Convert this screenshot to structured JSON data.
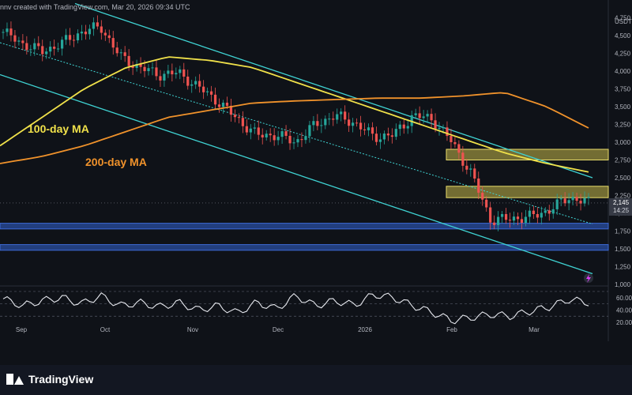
{
  "header": {
    "created_text": "nnv created with TradingView.com, Mar 20, 2026 09:34 UTC"
  },
  "footer": {
    "brand": "TradingView"
  },
  "colors": {
    "background": "#0f1218",
    "up": "#26a69a",
    "down": "#ef5350",
    "ma100": "#f0e14a",
    "ma200": "#f0922b",
    "channel": "#3fd3d3",
    "zone_yellow": "#c7b84a",
    "zone_blue": "#2a4ea0",
    "rsi": "#e6e8ee"
  },
  "annotations": {
    "ma100_label": "100-day MA",
    "ma200_label": "200-day MA"
  },
  "chart_data": {
    "type": "candlestick",
    "symbol_label": "USDT",
    "price_axis_ticks": [
      "4,750",
      "4,500",
      "4,250",
      "4,000",
      "3,750",
      "3,500",
      "3,250",
      "3,000",
      "2,750",
      "2,500",
      "2,250",
      "2,000",
      "1,750",
      "1,500",
      "1,250",
      "1,000"
    ],
    "price_axis_values": [
      4750,
      4500,
      4250,
      4000,
      3750,
      3500,
      3250,
      3000,
      2750,
      2500,
      2250,
      2000,
      1750,
      1500,
      1250,
      1000
    ],
    "current_price_label": "2,145",
    "countdown_label": "14:25",
    "x_tick_labels": [
      "Sep",
      "Oct",
      "Nov",
      "Dec",
      "2026",
      "Feb",
      "Mar"
    ],
    "ylim": [
      1000,
      4800
    ],
    "ohlc_anchors": [
      [
        4580,
        4520
      ],
      [
        4350,
        4420
      ],
      [
        4300,
        4250
      ],
      [
        4480,
        4300
      ],
      [
        4550,
        4550
      ],
      [
        4750,
        4500
      ],
      [
        4300,
        4100
      ],
      [
        4150,
        3950
      ],
      [
        4000,
        3900
      ],
      [
        4050,
        3900
      ],
      [
        3750,
        3800
      ],
      [
        3600,
        3550
      ],
      [
        3350,
        3300
      ],
      [
        3150,
        3050
      ],
      [
        3300,
        2900
      ],
      [
        3150,
        2850
      ],
      [
        3200,
        3300
      ],
      [
        3350,
        3400
      ],
      [
        3350,
        3200
      ],
      [
        3100,
        3050
      ],
      [
        3050,
        3150
      ],
      [
        3350,
        3400
      ],
      [
        3300,
        3350
      ],
      [
        3050,
        2950
      ],
      [
        2800,
        2300
      ],
      [
        1950,
        1850
      ],
      [
        1950,
        1900
      ],
      [
        1950,
        1950
      ],
      [
        2000,
        2100
      ],
      [
        2150,
        2300
      ],
      [
        2150,
        2150
      ]
    ],
    "moving_averages": [
      {
        "name": "100-day MA",
        "values": [
          2950,
          3350,
          3750,
          4050,
          4200,
          4150,
          4050,
          3850,
          3650,
          3450,
          3250,
          3050,
          2850,
          2700,
          2580
        ]
      },
      {
        "name": "200-day MA",
        "values": [
          2700,
          2800,
          2950,
          3150,
          3350,
          3450,
          3550,
          3580,
          3600,
          3620,
          3620,
          3650,
          3700,
          3500,
          3200
        ]
      }
    ],
    "channel_lines": [
      {
        "upper_from": 4950,
        "upper_to": 2500,
        "lower_from": 3950,
        "lower_to": 1150,
        "mid_from": 4400,
        "mid_to": 1850
      }
    ],
    "zones": [
      {
        "from": 2750,
        "to": 2900,
        "kind": "resistance"
      },
      {
        "from": 2220,
        "to": 2380,
        "kind": "resistance"
      },
      {
        "from": 1780,
        "to": 1860,
        "kind": "support"
      },
      {
        "from": 1480,
        "to": 1560,
        "kind": "support"
      }
    ],
    "rsi": {
      "ticks": [
        "60.00",
        "40.00",
        "20.00"
      ],
      "tick_values": [
        60,
        40,
        20
      ],
      "ylim": [
        15,
        75
      ],
      "anchors": [
        58,
        47,
        55,
        60,
        50,
        63,
        47,
        52,
        45,
        52,
        40,
        47,
        35,
        52,
        42,
        63,
        47,
        55,
        48,
        65,
        60,
        47,
        36,
        23,
        28,
        33,
        30,
        38,
        45,
        57,
        52
      ]
    }
  }
}
